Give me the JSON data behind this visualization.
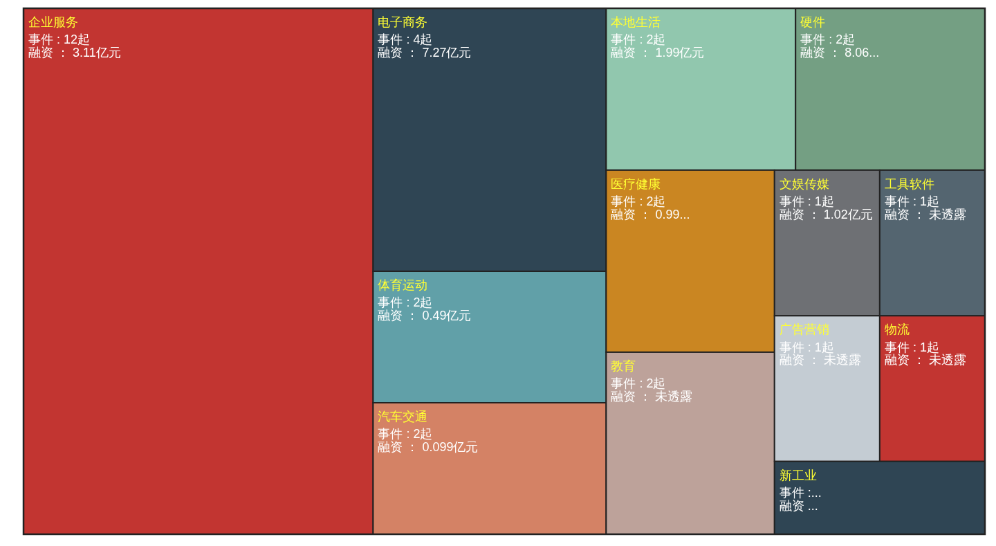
{
  "chart_data": {
    "type": "other",
    "categories": [
      "企业服务",
      "电子商务",
      "体育运动",
      "汽车交通",
      "本地生活",
      "硬件",
      "医疗健康",
      "教育",
      "文娱传媒",
      "工具软件",
      "广告营销",
      "物流",
      "新工业"
    ],
    "colors": [
      "#c23531",
      "#2f4554",
      "#61a0a8",
      "#d48265",
      "#91c7ae",
      "#749f83",
      "#ca8622",
      "#bda29a",
      "#6e7074",
      "#546570",
      "#c4ccd3",
      "#c23531",
      "#2f4554"
    ],
    "values": [
      12,
      4,
      2,
      2,
      2,
      2,
      2,
      2,
      1,
      1,
      1,
      1,
      null
    ],
    "value_labels": [
      "事件 : 12起",
      "事件 : 4起",
      "事件 : 2起",
      "事件 : 2起",
      "事件 : 2起",
      "事件 : 2起",
      "事件 : 2起",
      "事件 : 2起",
      "事件 : 1起",
      "事件 : 1起",
      "事件 : 1起",
      "事件 : 1起",
      "事件 :..."
    ],
    "annotations": [
      "融资 ： 3.11亿元",
      "融资 ： 7.27亿元",
      "融资 ： 0.49亿元",
      "融资 ： 0.099亿元",
      "融资 ： 1.99亿元",
      "融资 ： 8.06...",
      "融资 ： 0.99...",
      "融资 ： 未透露",
      "融资 ： 1.02亿元",
      "融资 ： 未透露",
      "融资 ： 未透露",
      "融资 ： 未透露",
      "融资 ..."
    ]
  }
}
